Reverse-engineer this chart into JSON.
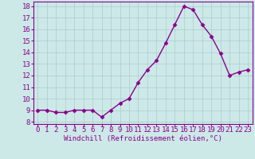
{
  "x": [
    0,
    1,
    2,
    3,
    4,
    5,
    6,
    7,
    8,
    9,
    10,
    11,
    12,
    13,
    14,
    15,
    16,
    17,
    18,
    19,
    20,
    21,
    22,
    23
  ],
  "y": [
    9.0,
    9.0,
    8.8,
    8.8,
    9.0,
    9.0,
    9.0,
    8.4,
    9.0,
    9.6,
    10.0,
    11.4,
    12.5,
    13.3,
    14.8,
    16.4,
    18.0,
    17.7,
    16.4,
    15.4,
    13.9,
    12.0,
    12.3,
    12.5
  ],
  "line_color": "#8B008B",
  "marker": "D",
  "marker_size": 2.5,
  "bg_color": "#cce9e8",
  "grid_color": "#aacccc",
  "xlabel": "Windchill (Refroidissement éolien,°C)",
  "yticks": [
    8,
    9,
    10,
    11,
    12,
    13,
    14,
    15,
    16,
    17,
    18
  ],
  "ylim": [
    7.8,
    18.4
  ],
  "xlim": [
    -0.5,
    23.5
  ],
  "xlabel_fontsize": 6.5,
  "tick_fontsize": 6.5,
  "line_width": 1.0
}
